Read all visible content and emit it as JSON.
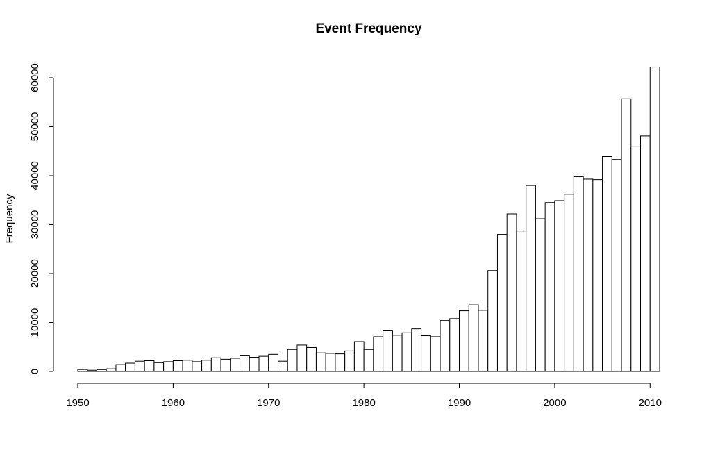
{
  "chart_data": {
    "type": "bar",
    "title": "Event Frequency",
    "xlabel": "",
    "ylabel": "Frequency",
    "x_ticks": [
      "1950",
      "1960",
      "1970",
      "1980",
      "1990",
      "2000",
      "2010"
    ],
    "y_ticks": [
      "0",
      "10000",
      "20000",
      "30000",
      "40000",
      "50000",
      "60000"
    ],
    "xlim": [
      1950,
      2011
    ],
    "ylim": [
      0,
      60000
    ],
    "bin_start": 1950,
    "bin_width": 1,
    "values": [
      400,
      250,
      380,
      550,
      1400,
      1700,
      2100,
      2200,
      1800,
      2000,
      2200,
      2300,
      2000,
      2300,
      2800,
      2500,
      2700,
      3200,
      2900,
      3100,
      3500,
      2100,
      4500,
      5400,
      4900,
      3800,
      3700,
      3600,
      4200,
      6100,
      4500,
      7100,
      8300,
      7400,
      7900,
      8700,
      7300,
      7100,
      10400,
      10800,
      12400,
      13600,
      12500,
      20600,
      28000,
      32200,
      28700,
      38000,
      31200,
      34500,
      34900,
      36200,
      39800,
      39300,
      39200,
      43900,
      43300,
      55700,
      45900,
      48100,
      62200
    ],
    "grid": false,
    "legend": "none"
  }
}
